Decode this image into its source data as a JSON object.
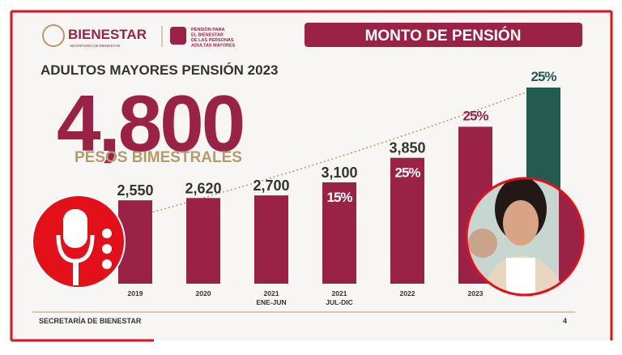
{
  "slide": {
    "brand": "BIENESTAR",
    "brand_sub": "SECRETARÍA DE BIENESTAR",
    "program": [
      "PENSIÓN PARA",
      "EL BIENESTAR",
      "DE LAS PERSONAS",
      "ADULTAS MAYORES"
    ],
    "banner": "MONTO DE PENSIÓN",
    "highlight": "4,800",
    "highlight_sub": "PESOS BIMESTRALES",
    "footer": "SECRETARÍA DE BIENESTAR",
    "page": "4"
  },
  "chart_data": {
    "type": "bar",
    "title": "ADULTOS MAYORES PENSIÓN 2023",
    "categories": [
      "2019",
      "2020",
      [
        "2021",
        "ENE-JUN"
      ],
      [
        "2021",
        "JUL-DIC"
      ],
      "2022",
      "2023",
      null
    ],
    "values": [
      2550,
      2620,
      2700,
      3100,
      3850,
      4800,
      6000
    ],
    "value_labels": [
      "2,550",
      "2,620",
      "2,700",
      "3,100",
      "3,850",
      null,
      null
    ],
    "percent_labels": [
      null,
      null,
      null,
      "15%",
      "25%",
      "25%",
      "25%"
    ],
    "colors": [
      "#9b2247",
      "#9b2247",
      "#9b2247",
      "#9b2247",
      "#9b2247",
      "#9b2247",
      "#235b4e"
    ],
    "ylim": [
      0,
      6000
    ]
  }
}
